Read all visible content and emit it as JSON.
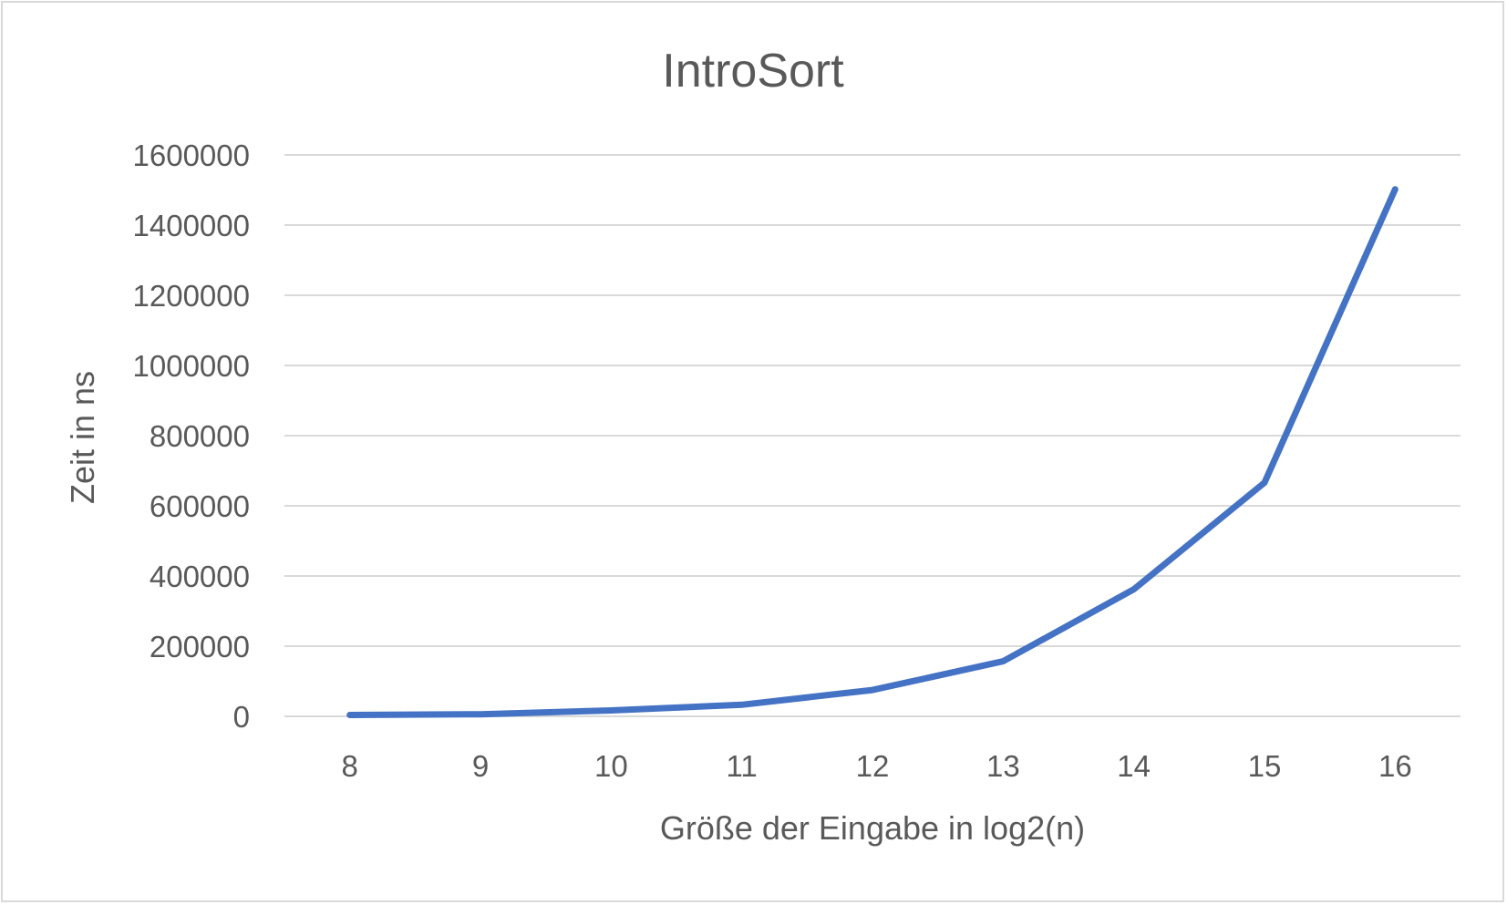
{
  "chart_data": {
    "type": "line",
    "title": "IntroSort",
    "xlabel": "Größe der Eingabe in log2(n)",
    "ylabel": "Zeit in ns",
    "categories": [
      "8",
      "9",
      "10",
      "11",
      "12",
      "13",
      "14",
      "15",
      "16"
    ],
    "series": [
      {
        "values": [
          4000,
          6000,
          17000,
          33000,
          75000,
          157000,
          362000,
          666000,
          1502000
        ],
        "color": "#4472c4"
      }
    ],
    "ylim": [
      0,
      1600000
    ],
    "yticks": [
      "0",
      "200000",
      "400000",
      "600000",
      "800000",
      "1000000",
      "1200000",
      "1400000",
      "1600000"
    ],
    "grid": true,
    "legend": "none"
  }
}
